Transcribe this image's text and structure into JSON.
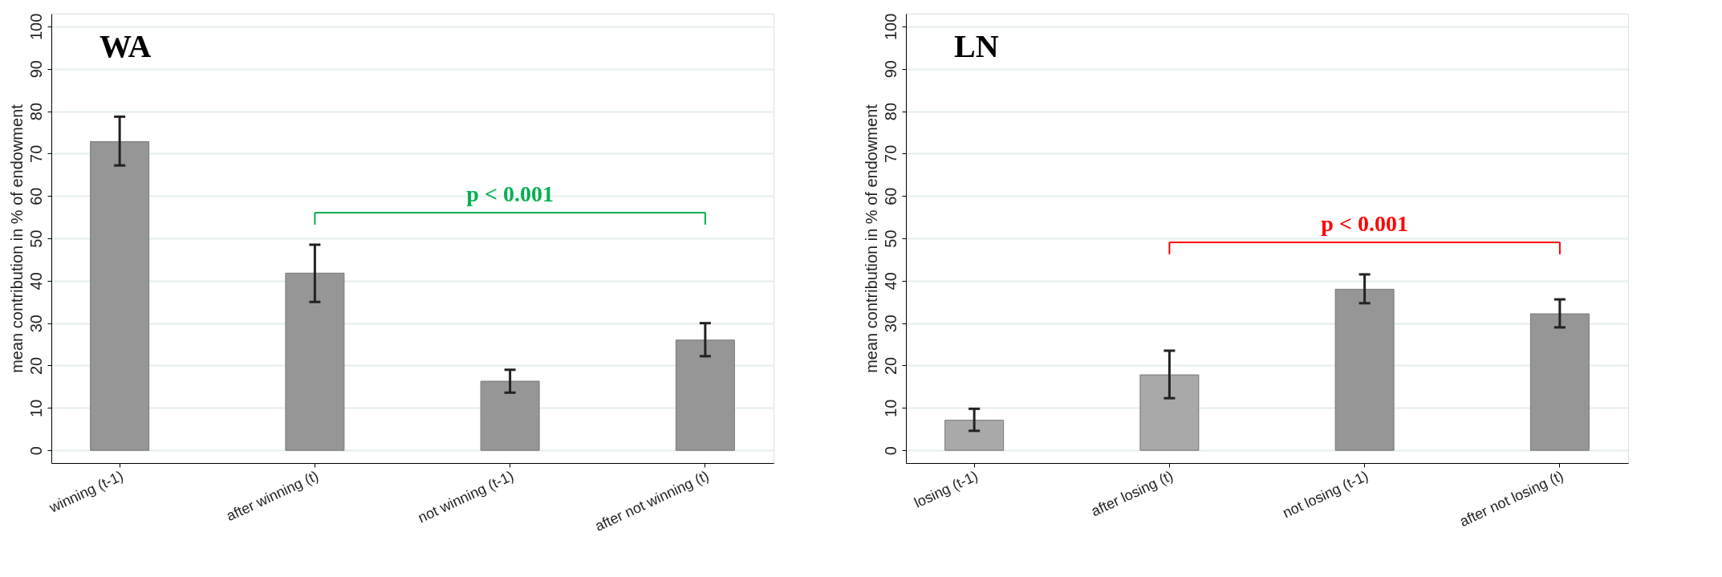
{
  "chart_data": [
    {
      "type": "bar",
      "title": "WA",
      "ylabel": "mean contribution in % of endowment",
      "categories": [
        "winning (t-1)",
        "after winning (t)",
        "not winning (t-1)",
        "after not winning (t)"
      ],
      "values": [
        72.8,
        41.8,
        16.3,
        26.0
      ],
      "colors": [
        "#969696",
        "#969696",
        "#969696",
        "#969696"
      ],
      "errors": [
        [
          67.2,
          78.7
        ],
        [
          35.0,
          48.5
        ],
        [
          13.6,
          19.0
        ],
        [
          22.2,
          30.0
        ]
      ],
      "ylim": [
        -3,
        103
      ],
      "yticks": [
        0,
        10,
        20,
        30,
        40,
        50,
        60,
        70,
        80,
        90,
        100
      ],
      "grid": "y",
      "annotations": [
        "p < 0.001"
      ]
    },
    {
      "type": "bar",
      "title": "LN",
      "ylabel": "mean contribution in % of endowment",
      "categories": [
        "losing (t-1)",
        "after losing (t)",
        "not losing (t-1)",
        "after not losing (t)"
      ],
      "values": [
        7.1,
        17.8,
        38.0,
        32.2
      ],
      "colors": [
        "#a9a9a9",
        "#a9a9a9",
        "#969696",
        "#969696"
      ],
      "errors": [
        [
          4.6,
          9.8
        ],
        [
          12.3,
          23.5
        ],
        [
          34.7,
          41.5
        ],
        [
          29.0,
          35.6
        ]
      ],
      "ylim": [
        -3,
        103
      ],
      "yticks": [
        0,
        10,
        20,
        30,
        40,
        50,
        60,
        70,
        80,
        90,
        100
      ],
      "grid": "y",
      "annotations": [
        "p < 0.001"
      ]
    }
  ]
}
